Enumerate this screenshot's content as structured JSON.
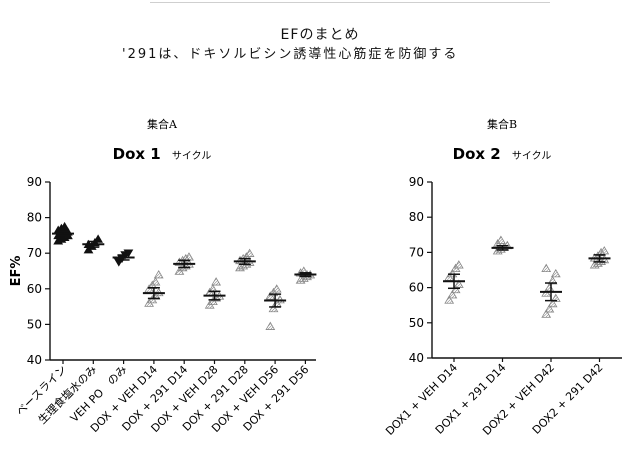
{
  "header": {
    "title": "EFのまとめ",
    "subtitle": "'291は、ドキソルビシン誘導性心筋症を防御する"
  },
  "chart_data": [
    {
      "type": "scatter",
      "group_label": "集合A",
      "title": "Dox 1",
      "title_suffix": "サイクル",
      "ylabel": "EF%",
      "ylim": [
        40,
        90
      ],
      "yticks": [
        40,
        50,
        60,
        70,
        80,
        90
      ],
      "categories": [
        "ベースライン",
        "生理食塩水のみ",
        "VEH PO　のみ",
        "DOX + VEH D14",
        "DOX + 291 D14",
        "DOX + VEH D28",
        "DOX + 291 D28",
        "DOX + VEH D56",
        "DOX + 291 D56"
      ],
      "marker_color": "#888888",
      "groups": [
        {
          "category": "ベースライン",
          "marker": "triangle-filled",
          "mean": 75.5,
          "sem": 0.6,
          "points": [
            73.5,
            74,
            74.5,
            75,
            75,
            75.5,
            76,
            76,
            76.5,
            77,
            77.5,
            75
          ]
        },
        {
          "category": "生理食塩水のみ",
          "marker": "triangle-filled",
          "mean": 72.5,
          "sem": 0.8,
          "points": [
            71,
            72,
            73,
            74,
            72.5
          ]
        },
        {
          "category": "VEH PO　のみ",
          "marker": "triangle-down-filled",
          "mean": 68.8,
          "sem": 0.7,
          "points": [
            67.5,
            68.5,
            69.5,
            70
          ]
        },
        {
          "category": "DOX + VEH D14",
          "marker": "triangle-hatched",
          "mean": 58.8,
          "sem": 1.5,
          "points": [
            56,
            57,
            58,
            59,
            60,
            61,
            62,
            64
          ]
        },
        {
          "category": "DOX + 291 D14",
          "marker": "triangle-hatched",
          "mean": 67,
          "sem": 1,
          "points": [
            65,
            66,
            66.5,
            67,
            67.5,
            68,
            68.5,
            69
          ]
        },
        {
          "category": "DOX + VEH D28",
          "marker": "triangle-hatched",
          "mean": 58.1,
          "sem": 1.2,
          "points": [
            55.5,
            56.5,
            57.5,
            58,
            59,
            60,
            62
          ]
        },
        {
          "category": "DOX + 291 D28",
          "marker": "triangle-hatched",
          "mean": 67.7,
          "sem": 0.8,
          "points": [
            66,
            66.5,
            67,
            67.5,
            68,
            68.5,
            69,
            70
          ]
        },
        {
          "category": "DOX + VEH D56",
          "marker": "triangle-hatched",
          "mean": 56.7,
          "sem": 1.8,
          "points": [
            49.5,
            54.5,
            56,
            57,
            58,
            59,
            60
          ]
        },
        {
          "category": "DOX + 291 D56",
          "marker": "triangle-hatched",
          "mean": 64,
          "sem": 0.5,
          "points": [
            62.5,
            63,
            63.5,
            64,
            64.5,
            65,
            64
          ]
        }
      ]
    },
    {
      "type": "scatter",
      "group_label": "集合B",
      "title": "Dox 2",
      "title_suffix": "サイクル",
      "ylabel": "",
      "ylim": [
        40,
        90
      ],
      "yticks": [
        40,
        50,
        60,
        70,
        80,
        90
      ],
      "categories": [
        "DOX1 + VEH D14",
        "DOX1 + 291 D14",
        "DOX2 + VEH D42",
        "DOX2 + 291 D42"
      ],
      "marker_color": "#888888",
      "groups": [
        {
          "category": "DOX1 + VEH D14",
          "marker": "triangle-hatched",
          "mean": 61.8,
          "sem": 2,
          "points": [
            56.5,
            58,
            59.5,
            61,
            63,
            64,
            65.5,
            66.5
          ]
        },
        {
          "category": "DOX1 + 291 D14",
          "marker": "triangle-hatched",
          "mean": 71.3,
          "sem": 0.6,
          "points": [
            70.5,
            71,
            71.5,
            72,
            72.5,
            73.5
          ]
        },
        {
          "category": "DOX2 + VEH D42",
          "marker": "triangle-hatched",
          "mean": 58.8,
          "sem": 2.5,
          "points": [
            52.5,
            54,
            55.5,
            57,
            58.5,
            60,
            62,
            64,
            65.5
          ]
        },
        {
          "category": "DOX2 + 291 D42",
          "marker": "triangle-hatched",
          "mean": 68.3,
          "sem": 1,
          "points": [
            66.5,
            67,
            67.5,
            68,
            68.5,
            69,
            70,
            70.5
          ]
        }
      ]
    }
  ]
}
